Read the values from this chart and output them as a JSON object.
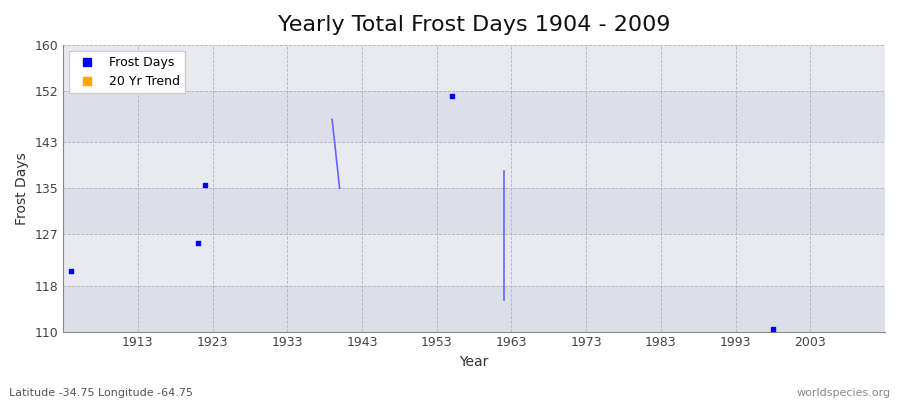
{
  "title": "Yearly Total Frost Days 1904 - 2009",
  "xlabel": "Year",
  "ylabel": "Frost Days",
  "xlim": [
    1903,
    2013
  ],
  "ylim": [
    110,
    160
  ],
  "yticks": [
    110,
    118,
    127,
    135,
    143,
    152,
    160
  ],
  "xticks": [
    1913,
    1923,
    1933,
    1943,
    1953,
    1963,
    1973,
    1983,
    1993,
    2003
  ],
  "scatter_x": [
    1904,
    1921,
    1922,
    1955,
    1998
  ],
  "scatter_y": [
    120.5,
    125.5,
    135.5,
    151.0,
    110.5
  ],
  "line_segments": [
    [
      [
        1939,
        147.0
      ],
      [
        1940,
        135.0
      ]
    ],
    [
      [
        1962,
        138.0
      ],
      [
        1962,
        115.5
      ]
    ]
  ],
  "scatter_color": "#0000ff",
  "scatter_marker": "s",
  "scatter_size": 6,
  "line_color": "#6666ff",
  "legend_labels": [
    "Frost Days",
    "20 Yr Trend"
  ],
  "legend_colors": [
    "#0000ff",
    "#ffa500"
  ],
  "legend_markers": [
    "s",
    "s"
  ],
  "bg_color": "#ffffff",
  "plot_bg_color": "#e8eaf0",
  "band_colors": [
    "#e0e2ea",
    "#eaecf2"
  ],
  "grid_color": "#c8cad0",
  "subtitle_lat": "Latitude -34.75 Longitude -64.75",
  "watermark": "worldspecies.org",
  "title_fontsize": 16,
  "label_fontsize": 10,
  "band_yticks": [
    110,
    118,
    127,
    135,
    143,
    152,
    160
  ]
}
